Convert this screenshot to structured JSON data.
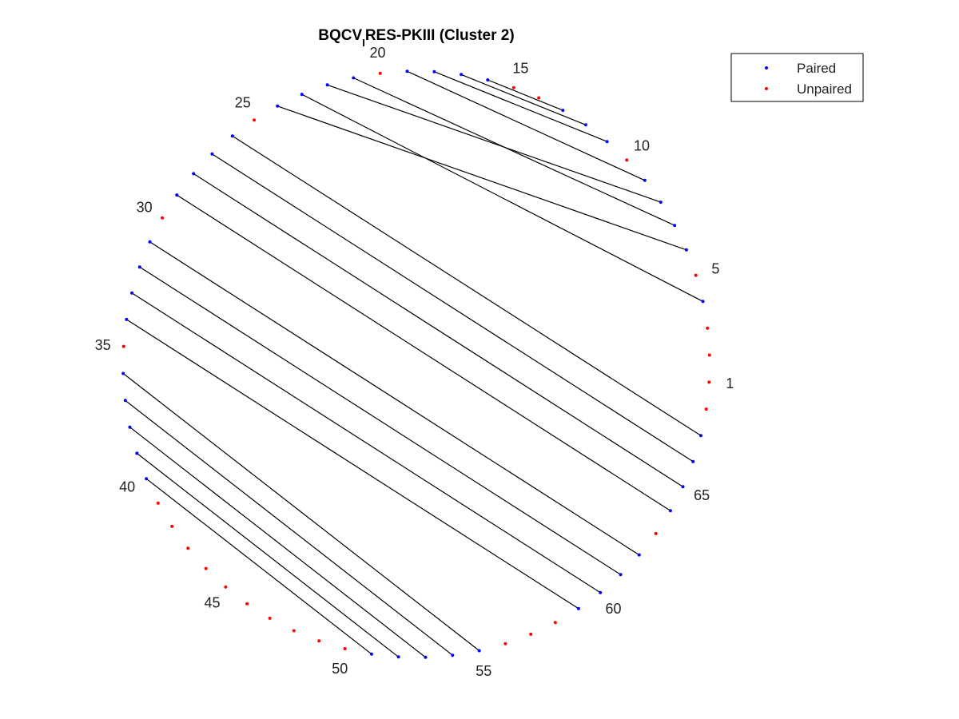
{
  "title": {
    "main": "BQCV",
    "subscript": "I",
    "rest": "RES-PKIII (Cluster 2)"
  },
  "legend": {
    "items": [
      {
        "label": "Paired",
        "color": "#0000ff"
      },
      {
        "label": "Unpaired",
        "color": "#ff0000"
      }
    ]
  },
  "chart_data": {
    "type": "arc-diagram-circular",
    "positions": 68,
    "number_labels": [
      1,
      5,
      10,
      15,
      20,
      25,
      30,
      35,
      40,
      45,
      50,
      55,
      60,
      65
    ],
    "pairs": [
      [
        4,
        23
      ],
      [
        6,
        24
      ],
      [
        7,
        21
      ],
      [
        8,
        22
      ],
      [
        9,
        19
      ],
      [
        11,
        18
      ],
      [
        12,
        17
      ],
      [
        13,
        16
      ],
      [
        26,
        67
      ],
      [
        27,
        66
      ],
      [
        28,
        65
      ],
      [
        29,
        64
      ],
      [
        31,
        62
      ],
      [
        32,
        61
      ],
      [
        33,
        60
      ],
      [
        34,
        59
      ],
      [
        36,
        55
      ],
      [
        37,
        54
      ],
      [
        38,
        53
      ],
      [
        39,
        52
      ],
      [
        40,
        51
      ]
    ],
    "colors": {
      "paired": "#0000ff",
      "unpaired": "#ff0000",
      "link": "#000000"
    }
  }
}
